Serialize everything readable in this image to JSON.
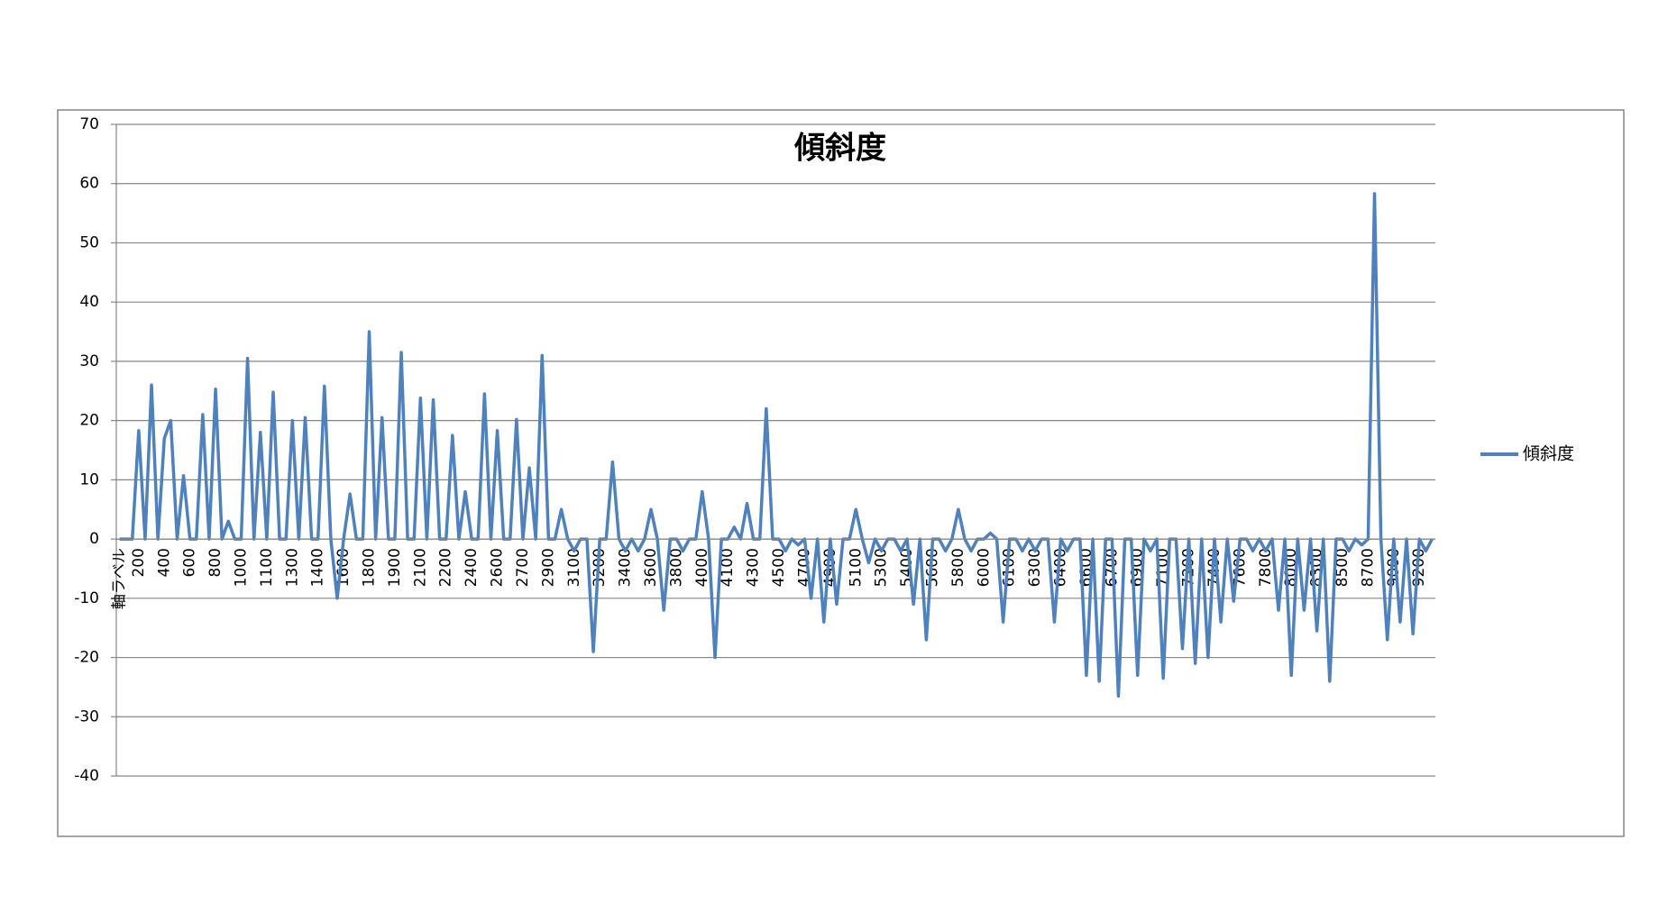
{
  "chart_data": {
    "type": "line",
    "title": "傾斜度",
    "categories": [
      "軸ラベル",
      null,
      null,
      "200",
      null,
      null,
      null,
      "400",
      null,
      null,
      null,
      "600",
      null,
      null,
      null,
      "800",
      null,
      null,
      null,
      "1000",
      null,
      null,
      null,
      "1100",
      null,
      null,
      null,
      "1300",
      null,
      null,
      null,
      "1400",
      null,
      null,
      null,
      "1600",
      null,
      null,
      null,
      "1800",
      null,
      null,
      null,
      "1900",
      null,
      null,
      null,
      "2100",
      null,
      null,
      null,
      "2200",
      null,
      null,
      null,
      "2400",
      null,
      null,
      null,
      "2600",
      null,
      null,
      null,
      "2700",
      null,
      null,
      null,
      "2900",
      null,
      null,
      null,
      "3100",
      null,
      null,
      null,
      "3200",
      null,
      null,
      null,
      "3400",
      null,
      null,
      null,
      "3600",
      null,
      null,
      null,
      "3800",
      null,
      null,
      null,
      "4000",
      null,
      null,
      null,
      "4100",
      null,
      null,
      null,
      "4300",
      null,
      null,
      null,
      "4500",
      null,
      null,
      null,
      "4700",
      null,
      null,
      null,
      "4900",
      null,
      null,
      null,
      "5100",
      null,
      null,
      null,
      "5300",
      null,
      null,
      null,
      "5400",
      null,
      null,
      null,
      "5600",
      null,
      null,
      null,
      "5800",
      null,
      null,
      null,
      "6000",
      null,
      null,
      null,
      "6100",
      null,
      null,
      null,
      "6300",
      null,
      null,
      null,
      "6400",
      null,
      null,
      null,
      "6600",
      null,
      null,
      null,
      "6700",
      null,
      null,
      null,
      "6900",
      null,
      null,
      null,
      "7100",
      null,
      null,
      null,
      "7200",
      null,
      null,
      null,
      "7400",
      null,
      null,
      null,
      "7600",
      null,
      null,
      null,
      "7800",
      null,
      null,
      null,
      "8000",
      null,
      null,
      null,
      "8300",
      null,
      null,
      null,
      "8500",
      null,
      null,
      null,
      "8700",
      null,
      null,
      null,
      "9000",
      null,
      null,
      null,
      "9200",
      null,
      null
    ],
    "series": [
      {
        "name": "傾斜度",
        "color": "#4f81bd",
        "values": [
          0,
          0,
          0,
          18.3,
          0,
          26,
          0,
          17,
          20,
          0,
          10.7,
          0,
          0,
          21,
          0,
          25.3,
          0,
          3,
          0,
          0,
          30.5,
          0,
          18,
          0,
          24.8,
          0,
          0,
          20,
          0,
          20.5,
          0,
          0,
          25.8,
          0,
          -10,
          0,
          7.6,
          0,
          0,
          35,
          0,
          20.5,
          0,
          0,
          31.5,
          0,
          0,
          23.8,
          0,
          23.5,
          0,
          0,
          17.5,
          0,
          8,
          0,
          0,
          24.5,
          0,
          18.3,
          0,
          0,
          20.2,
          0,
          12,
          0,
          31,
          0,
          0,
          5,
          0,
          -2,
          0,
          0,
          -19,
          0,
          0,
          13,
          0,
          -2,
          0,
          -2,
          0,
          5,
          0,
          -12,
          0,
          0,
          -2,
          0,
          0,
          8,
          0,
          -20,
          0,
          0,
          2,
          0,
          6,
          0,
          0,
          22,
          0,
          0,
          -2,
          0,
          -1,
          0,
          -10,
          0,
          -14,
          0,
          -11,
          0,
          0,
          5,
          0,
          -4,
          0,
          -2,
          0,
          0,
          -2,
          0,
          -11,
          0,
          -17,
          0,
          0,
          -2,
          0,
          5,
          0,
          -2,
          0,
          0,
          1,
          0,
          -14,
          0,
          0,
          -2,
          0,
          -2,
          0,
          0,
          -14,
          0,
          -2,
          0,
          0,
          -23,
          0,
          -24,
          0,
          0,
          -26.5,
          0,
          0,
          -23,
          0,
          -2,
          0,
          -23.5,
          0,
          0,
          -18.5,
          0,
          -21,
          0,
          -20,
          0,
          -14,
          0,
          -10.5,
          0,
          0,
          -2,
          0,
          -2,
          0,
          -12,
          0,
          -23,
          0,
          -12,
          0,
          -15.5,
          0,
          -24,
          0,
          0,
          -2,
          0,
          -1,
          0,
          58.3,
          0,
          -17,
          0,
          -14,
          0,
          -16,
          0,
          -2,
          0
        ]
      }
    ],
    "ylim": [
      -40,
      70
    ],
    "yticks": [
      -40,
      -30,
      -20,
      -10,
      0,
      10,
      20,
      30,
      40,
      50,
      60,
      70
    ],
    "grid": true,
    "legend": "right"
  }
}
